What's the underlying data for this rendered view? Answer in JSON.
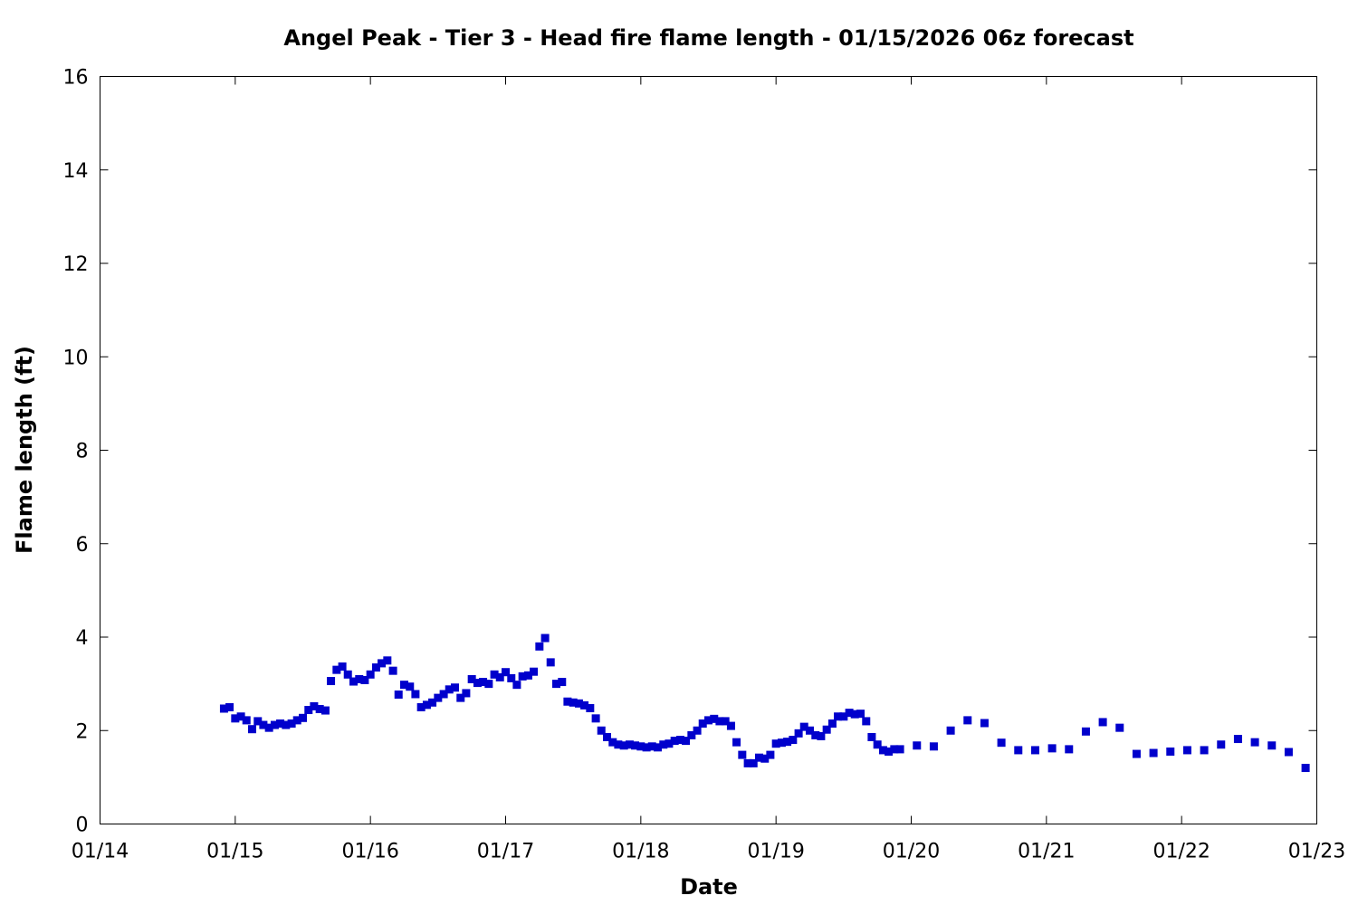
{
  "chart_data": {
    "type": "scatter",
    "title": "Angel Peak - Tier 3 - Head fire flame length - 01/15/2026 06z forecast",
    "xlabel": "Date",
    "ylabel": "Flame length (ft)",
    "x_tick_labels": [
      "01/14",
      "01/15",
      "01/16",
      "01/17",
      "01/18",
      "01/19",
      "01/20",
      "01/21",
      "01/22",
      "01/23"
    ],
    "y_tick_labels": [
      "0",
      "2",
      "4",
      "6",
      "8",
      "10",
      "12",
      "14",
      "16"
    ],
    "xlim": [
      0,
      9
    ],
    "ylim": [
      0,
      16
    ],
    "x_unit": "days since 01/14",
    "grid": false,
    "marker_color": "#0000cc",
    "series": [
      {
        "x": [
          0.917,
          0.958,
          1.0,
          1.042,
          1.083,
          1.125,
          1.167,
          1.208,
          1.25,
          1.292,
          1.333,
          1.375,
          1.417,
          1.458,
          1.5,
          1.542,
          1.583,
          1.625,
          1.667,
          1.708,
          1.75,
          1.792,
          1.833,
          1.875,
          1.917,
          1.958,
          2.0,
          2.042,
          2.083,
          2.125,
          2.167,
          2.208,
          2.25,
          2.292,
          2.333,
          2.375,
          2.417,
          2.458,
          2.5,
          2.542,
          2.583,
          2.625,
          2.667,
          2.708,
          2.75,
          2.792,
          2.833,
          2.875,
          2.917,
          2.958,
          3.0,
          3.042,
          3.083,
          3.125,
          3.167,
          3.208,
          3.25,
          3.292,
          3.333,
          3.375,
          3.417,
          3.458,
          3.5,
          3.542,
          3.583,
          3.625,
          3.667,
          3.708,
          3.75,
          3.792,
          3.833,
          3.875,
          3.917,
          3.958,
          4.0,
          4.042,
          4.083,
          4.125,
          4.167,
          4.208,
          4.25,
          4.292,
          4.333,
          4.375,
          4.417,
          4.458,
          4.5,
          4.542,
          4.583,
          4.625,
          4.667,
          4.708,
          4.75,
          4.792,
          4.833,
          4.875,
          4.917,
          4.958,
          5.0,
          5.042,
          5.083,
          5.125,
          5.167,
          5.208,
          5.25,
          5.292,
          5.333,
          5.375,
          5.417,
          5.458,
          5.5,
          5.542,
          5.583,
          5.625,
          5.667,
          5.708,
          5.75,
          5.792,
          5.833,
          5.875,
          5.917,
          6.042,
          6.167,
          6.292,
          6.417,
          6.542,
          6.667,
          6.792,
          6.917,
          7.042,
          7.167,
          7.292,
          7.417,
          7.542,
          7.667,
          7.792,
          7.917,
          8.042,
          8.167,
          8.292,
          8.417,
          8.542,
          8.667,
          8.792,
          8.917
        ],
        "y": [
          2.47,
          2.5,
          2.26,
          2.3,
          2.22,
          2.03,
          2.2,
          2.12,
          2.06,
          2.12,
          2.15,
          2.12,
          2.15,
          2.22,
          2.27,
          2.44,
          2.52,
          2.46,
          2.43,
          3.06,
          3.3,
          3.37,
          3.2,
          3.05,
          3.1,
          3.08,
          3.2,
          3.35,
          3.44,
          3.5,
          3.28,
          2.77,
          2.98,
          2.94,
          2.78,
          2.5,
          2.55,
          2.6,
          2.7,
          2.78,
          2.88,
          2.92,
          2.7,
          2.8,
          3.1,
          3.02,
          3.04,
          3.0,
          3.2,
          3.14,
          3.25,
          3.12,
          2.98,
          3.16,
          3.18,
          3.26,
          3.8,
          3.98,
          3.46,
          3.0,
          3.04,
          2.62,
          2.6,
          2.58,
          2.54,
          2.48,
          2.26,
          2.0,
          1.86,
          1.75,
          1.7,
          1.68,
          1.7,
          1.68,
          1.66,
          1.64,
          1.66,
          1.64,
          1.7,
          1.72,
          1.78,
          1.8,
          1.78,
          1.9,
          2.0,
          2.15,
          2.22,
          2.25,
          2.2,
          2.2,
          2.1,
          1.75,
          1.48,
          1.3,
          1.3,
          1.42,
          1.4,
          1.48,
          1.72,
          1.74,
          1.76,
          1.8,
          1.94,
          2.08,
          2.0,
          1.9,
          1.88,
          2.02,
          2.15,
          2.3,
          2.3,
          2.38,
          2.35,
          2.36,
          2.2,
          1.86,
          1.7,
          1.58,
          1.55,
          1.6,
          1.6,
          1.68,
          1.66,
          2.0,
          2.22,
          2.16,
          1.74,
          1.58,
          1.58,
          1.62,
          1.6,
          1.98,
          2.18,
          2.06,
          1.5,
          1.52,
          1.55,
          1.58,
          1.58,
          1.7,
          1.82,
          1.75,
          1.68,
          1.54,
          1.2
        ]
      }
    ]
  }
}
